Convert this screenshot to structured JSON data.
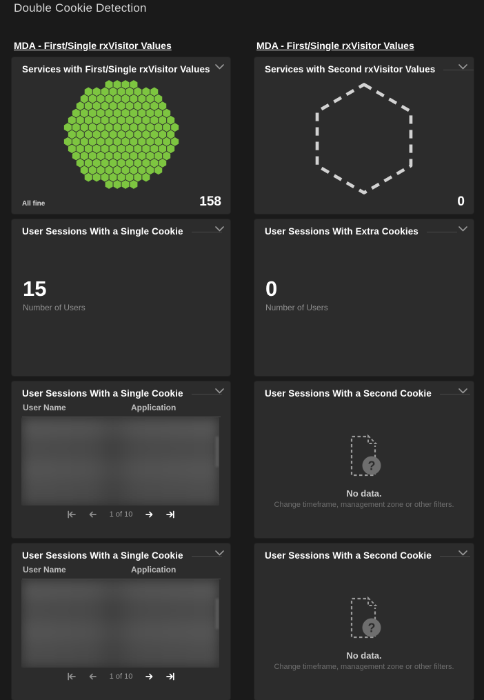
{
  "page": {
    "title": "Double Cookie Detection"
  },
  "colors": {
    "green": "#7dc540",
    "page_bg": "#1a1a1a",
    "tile_bg": "#2c2c2c",
    "dashed_gray": "#d2d2d2"
  },
  "section_links": {
    "left": "MDA - First/Single rxVisitor Values",
    "right": "MDA - First/Single rxVisitor Values"
  },
  "tiles": {
    "services_single": {
      "title": "Services with First/Single rxVisitor Values",
      "status_label": "All fine",
      "count": "158",
      "cells": 158
    },
    "services_second": {
      "title": "Services with Second rxVisitor Values",
      "count": "0",
      "cells": 0
    },
    "sessions_single_count": {
      "title": "User Sessions With a Single Cookie",
      "value": "15",
      "caption": "Number of Users"
    },
    "sessions_extra_count": {
      "title": "User Sessions With Extra Cookies",
      "value": "0",
      "caption": "Number of Users"
    },
    "sessions_single_table_top": {
      "title": "User Sessions With a Single Cookie",
      "columns": [
        "User Name",
        "Application"
      ],
      "page_label": "1 of 10"
    },
    "sessions_second_nodata_top": {
      "title": "User Sessions With a Second Cookie",
      "message": "No data.",
      "hint": "Change timeframe, management zone or other filters."
    },
    "sessions_single_table_bottom": {
      "title": "User Sessions With a Single Cookie",
      "columns": [
        "User Name",
        "Application"
      ],
      "page_label": "1 of 10"
    },
    "sessions_second_nodata_bottom": {
      "title": "User Sessions With a Second Cookie",
      "message": "No data.",
      "hint": "Change timeframe, management zone or other filters."
    }
  }
}
